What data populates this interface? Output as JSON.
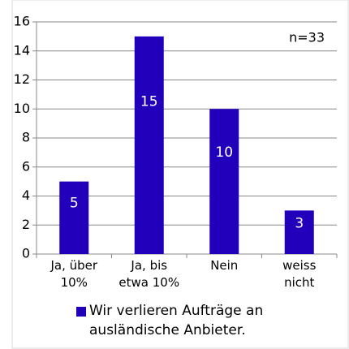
{
  "chart_data": {
    "type": "bar",
    "categories": [
      "Ja, über 10%",
      "Ja, bis etwa 10%",
      "Nein",
      "weiss nicht"
    ],
    "series": [
      {
        "name": "Wir verlieren Aufträge an ausländische Anbieter.",
        "color": "#2200bb",
        "values": [
          5,
          15,
          10,
          3
        ]
      }
    ],
    "annotation": "n=33",
    "ylim": [
      0,
      16
    ],
    "yticks": [
      0,
      2,
      4,
      6,
      8,
      10,
      12,
      14,
      16
    ],
    "grid": true,
    "legend": "bottom"
  }
}
